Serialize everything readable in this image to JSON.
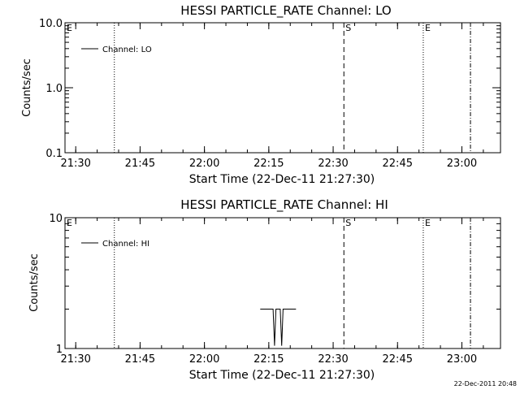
{
  "footer": {
    "timestamp": "22-Dec-2011 20:48"
  },
  "chart_data": [
    {
      "type": "line",
      "title": "HESSI PARTICLE_RATE Channel: LO",
      "xlabel": "Start Time (22-Dec-11 21:27:30)",
      "ylabel": "Counts/sec",
      "yscale": "log",
      "ylim": [
        0.1,
        10.0
      ],
      "xlim": [
        "21:27:30",
        "23:09:00"
      ],
      "x_ticks": [
        "21:30",
        "21:45",
        "22:00",
        "22:15",
        "22:30",
        "22:45",
        "23:00"
      ],
      "y_ticks": [
        "0.1",
        "1.0",
        "10.0"
      ],
      "legend": {
        "position": "top-left",
        "entries": [
          "Channel: LO"
        ]
      },
      "markers": [
        {
          "label": "E",
          "time": "21:27:30",
          "style": "solid"
        },
        {
          "label": "",
          "time": "21:39:00",
          "style": "dotted"
        },
        {
          "label": "S",
          "time": "22:32:30",
          "style": "dashed"
        },
        {
          "label": "E",
          "time": "22:51:00",
          "style": "dotted"
        },
        {
          "label": "",
          "time": "23:02:00",
          "style": "dashdot"
        }
      ],
      "series": [
        {
          "name": "Channel: LO",
          "points": []
        }
      ]
    },
    {
      "type": "line",
      "title": "HESSI PARTICLE_RATE Channel: HI",
      "xlabel": "Start Time (22-Dec-11 21:27:30)",
      "ylabel": "Counts/sec",
      "yscale": "log",
      "ylim": [
        1,
        10
      ],
      "xlim": [
        "21:27:30",
        "23:09:00"
      ],
      "x_ticks": [
        "21:30",
        "21:45",
        "22:00",
        "22:15",
        "22:30",
        "22:45",
        "23:00"
      ],
      "y_ticks": [
        "1",
        "10"
      ],
      "legend": {
        "position": "top-left",
        "entries": [
          "Channel: HI"
        ]
      },
      "markers": [
        {
          "label": "E",
          "time": "21:27:30",
          "style": "solid"
        },
        {
          "label": "",
          "time": "21:39:00",
          "style": "dotted"
        },
        {
          "label": "S",
          "time": "22:32:30",
          "style": "dashed"
        },
        {
          "label": "E",
          "time": "22:51:00",
          "style": "dotted"
        },
        {
          "label": "",
          "time": "23:02:00",
          "style": "dashdot"
        }
      ],
      "series": [
        {
          "name": "Channel: HI",
          "points": [
            [
              "22:13:00",
              2.0
            ],
            [
              "22:16:00",
              2.0
            ],
            [
              "22:16:20",
              1.05
            ],
            [
              "22:16:40",
              2.0
            ],
            [
              "22:17:40",
              2.0
            ],
            [
              "22:18:00",
              1.05
            ],
            [
              "22:18:20",
              2.0
            ],
            [
              "22:21:20",
              2.0
            ]
          ]
        }
      ]
    }
  ]
}
